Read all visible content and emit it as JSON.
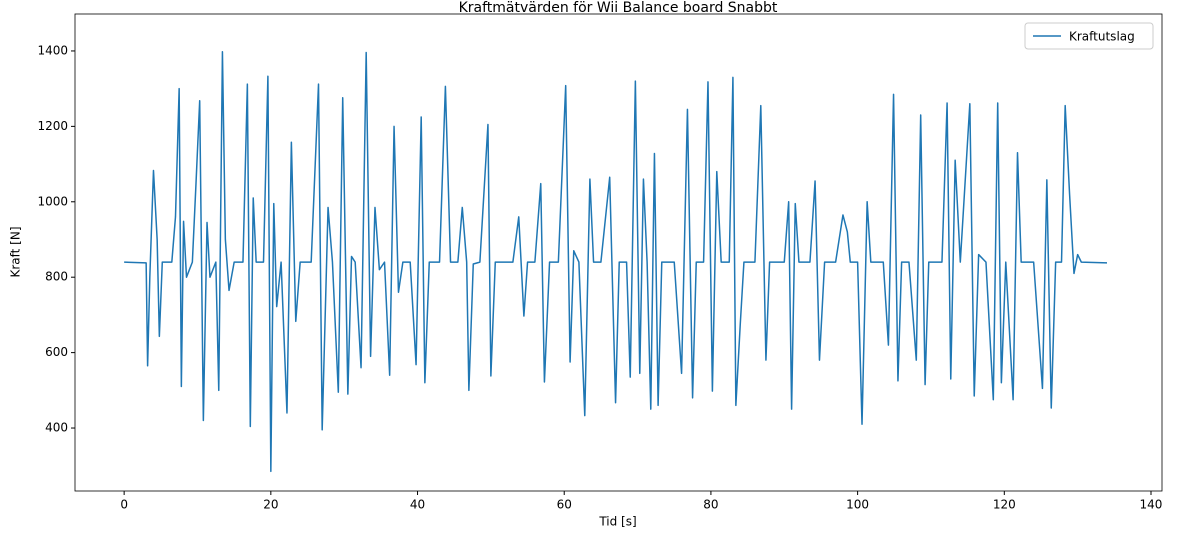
{
  "chart_data": {
    "type": "line",
    "title": "Kraftmätvärden för Wii Balance board Snabbt",
    "x_label": "Tid [s]",
    "y_label": "Kraft [N]",
    "legend": "upper right",
    "series": [
      {
        "name": "Kraftutslag",
        "color": "#1f77b4",
        "x": [
          0,
          3,
          3.2,
          3.5,
          4.0,
          4.5,
          4.8,
          5.2,
          6.5,
          7.0,
          7.5,
          7.8,
          8.1,
          8.5,
          9.3,
          9.8,
          10.3,
          10.8,
          11.3,
          11.7,
          12.5,
          12.9,
          13.4,
          13.8,
          14.3,
          15.0,
          16.2,
          16.8,
          17.2,
          17.6,
          18.0,
          19.0,
          19.6,
          20.0,
          20.4,
          20.8,
          21.4,
          22.2,
          22.8,
          23.4,
          24.0,
          25.5,
          26.5,
          27.0,
          27.8,
          28.4,
          29.2,
          29.8,
          30.5,
          31.0,
          31.5,
          32.3,
          33.0,
          33.6,
          34.2,
          34.8,
          35.5,
          36.2,
          36.8,
          37.4,
          38.0,
          39.0,
          39.8,
          40.5,
          41.0,
          41.6,
          43.0,
          43.8,
          44.5,
          45.5,
          46.1,
          46.7,
          47.0,
          47.6,
          48.5,
          49.6,
          50.0,
          50.6,
          53.0,
          53.8,
          54.5,
          55.0,
          56.0,
          56.8,
          57.3,
          58.0,
          59.2,
          60.2,
          60.8,
          61.3,
          62.0,
          62.8,
          63.5,
          64.0,
          65.0,
          66.2,
          67.0,
          67.5,
          68.5,
          69.0,
          69.7,
          70.3,
          70.8,
          71.3,
          71.8,
          72.3,
          72.8,
          73.3,
          75.0,
          76.0,
          76.8,
          77.5,
          78.0,
          79.0,
          79.6,
          80.2,
          80.8,
          81.4,
          82.5,
          83.0,
          83.4,
          84.0,
          84.5,
          86.0,
          86.8,
          87.5,
          88.0,
          90.0,
          90.6,
          91.0,
          91.5,
          92.0,
          93.5,
          94.2,
          94.8,
          95.5,
          97.0,
          98.0,
          98.6,
          99.0,
          100.0,
          100.6,
          101.3,
          101.8,
          103.5,
          104.2,
          104.9,
          105.5,
          106.0,
          107.0,
          108.0,
          108.6,
          109.2,
          109.7,
          111.5,
          112.2,
          112.7,
          113.3,
          114.0,
          115.3,
          115.9,
          116.5,
          117.5,
          118.5,
          119.1,
          119.6,
          120.2,
          121.2,
          121.8,
          122.3,
          124.0,
          125.2,
          125.8,
          126.4,
          127.0,
          127.8,
          128.3,
          128.9,
          129.5,
          130.0,
          130.5,
          134.0
        ],
        "values": [
          840,
          838,
          565,
          800,
          1083,
          900,
          643,
          840,
          840,
          960,
          1300,
          510,
          948,
          800,
          840,
          1050,
          1268,
          420,
          945,
          800,
          840,
          500,
          1398,
          900,
          765,
          840,
          840,
          1312,
          404,
          1010,
          840,
          840,
          1333,
          285,
          995,
          722,
          840,
          440,
          1158,
          683,
          840,
          840,
          1312,
          395,
          985,
          840,
          495,
          1276,
          490,
          855,
          840,
          560,
          1396,
          590,
          985,
          820,
          840,
          540,
          1200,
          760,
          840,
          840,
          568,
          1225,
          520,
          840,
          840,
          1306,
          840,
          840,
          985,
          840,
          500,
          835,
          840,
          1205,
          538,
          840,
          840,
          960,
          697,
          840,
          840,
          1048,
          522,
          840,
          840,
          1308,
          575,
          870,
          840,
          433,
          1060,
          840,
          840,
          1065,
          467,
          840,
          840,
          535,
          1320,
          545,
          1060,
          840,
          450,
          1128,
          460,
          840,
          840,
          545,
          1245,
          480,
          840,
          840,
          1318,
          498,
          1080,
          840,
          840,
          1330,
          460,
          675,
          840,
          840,
          1255,
          580,
          840,
          840,
          1000,
          450,
          995,
          840,
          840,
          1055,
          580,
          840,
          840,
          965,
          920,
          840,
          840,
          410,
          1000,
          840,
          840,
          620,
          1285,
          525,
          840,
          840,
          580,
          1230,
          515,
          840,
          840,
          1262,
          530,
          1110,
          840,
          1260,
          485,
          860,
          840,
          475,
          1262,
          520,
          840,
          475,
          1130,
          840,
          840,
          505,
          1058,
          453,
          840,
          840,
          1255,
          1020,
          810,
          860,
          840,
          838
        ]
      }
    ],
    "xlim": [
      -6.7,
      141.5
    ],
    "ylim": [
      233,
      1498
    ],
    "xticks": [
      0,
      20,
      40,
      60,
      80,
      100,
      120,
      140
    ],
    "yticks": [
      400,
      600,
      800,
      1000,
      1200,
      1400
    ]
  }
}
